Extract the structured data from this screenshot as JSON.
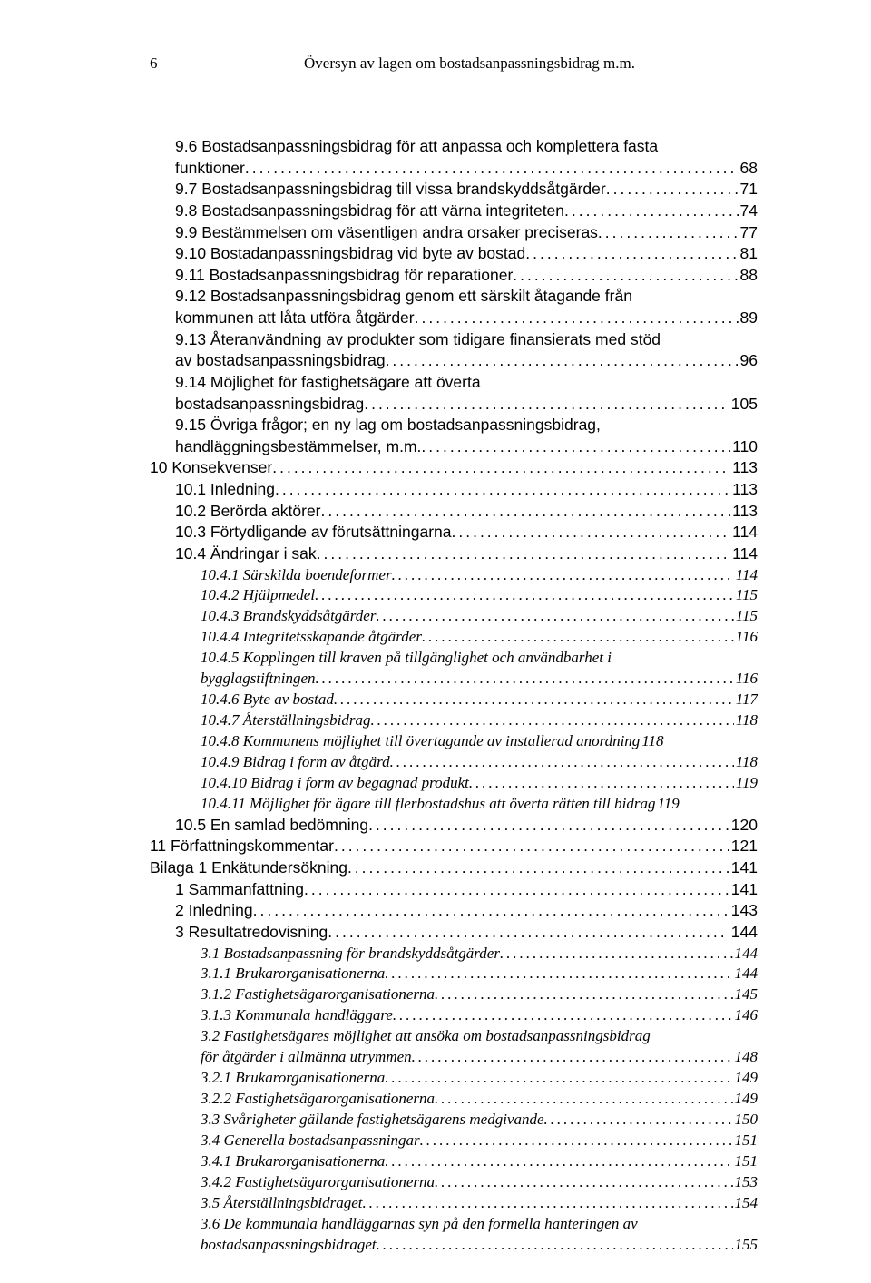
{
  "pageNumber": "6",
  "headerTitle": "Översyn av lagen om bostadsanpassningsbidrag m.m.",
  "lines": [
    {
      "style": "sans",
      "indent": 1,
      "text": "9.6 Bostadsanpassningsbidrag för att anpassa och komplettera fasta",
      "cont": true
    },
    {
      "style": "sans",
      "indent": 1,
      "text": "funktioner",
      "page": "68"
    },
    {
      "style": "sans",
      "indent": 1,
      "text": "9.7 Bostadsanpassningsbidrag till vissa brandskyddsåtgärder",
      "page": "71"
    },
    {
      "style": "sans",
      "indent": 1,
      "text": "9.8 Bostadsanpassningsbidrag för att värna integriteten",
      "page": "74"
    },
    {
      "style": "sans",
      "indent": 1,
      "text": "9.9 Bestämmelsen om väsentligen andra orsaker preciseras",
      "page": "77"
    },
    {
      "style": "sans",
      "indent": 1,
      "text": "9.10 Bostadanpassningsbidrag vid byte av bostad",
      "page": "81"
    },
    {
      "style": "sans",
      "indent": 1,
      "text": "9.11 Bostadsanpassningsbidrag för reparationer",
      "page": "88"
    },
    {
      "style": "sans",
      "indent": 1,
      "text": "9.12 Bostadsanpassningsbidrag genom ett särskilt åtagande från",
      "cont": true
    },
    {
      "style": "sans",
      "indent": 1,
      "text": "kommunen att låta utföra åtgärder",
      "page": "89"
    },
    {
      "style": "sans",
      "indent": 1,
      "text": "9.13 Återanvändning av produkter som tidigare finansierats med stöd",
      "cont": true
    },
    {
      "style": "sans",
      "indent": 1,
      "text": "av bostadsanpassningsbidrag",
      "page": "96"
    },
    {
      "style": "sans",
      "indent": 1,
      "text": "9.14 Möjlighet för fastighetsägare att överta",
      "cont": true
    },
    {
      "style": "sans",
      "indent": 1,
      "text": "bostadsanpassningsbidrag",
      "page": "105"
    },
    {
      "style": "sans",
      "indent": 1,
      "text": "9.15 Övriga frågor; en ny lag om bostadsanpassningsbidrag,",
      "cont": true
    },
    {
      "style": "sans",
      "indent": 1,
      "text": "handläggningsbestämmelser, m.m.",
      "page": "110"
    },
    {
      "style": "sans",
      "indent": 0,
      "text": "10 Konsekvenser",
      "page": "113"
    },
    {
      "style": "sans",
      "indent": 1,
      "text": "10.1 Inledning",
      "page": "113"
    },
    {
      "style": "sans",
      "indent": 1,
      "text": "10.2 Berörda aktörer",
      "page": "113"
    },
    {
      "style": "sans",
      "indent": 1,
      "text": "10.3 Förtydligande av förutsättningarna",
      "page": "114"
    },
    {
      "style": "sans",
      "indent": 1,
      "text": "10.4 Ändringar i sak",
      "page": "114"
    },
    {
      "style": "italic",
      "indent": 2,
      "text": "10.4.1 Särskilda boendeformer",
      "page": "114"
    },
    {
      "style": "italic",
      "indent": 2,
      "text": "10.4.2 Hjälpmedel",
      "page": "115"
    },
    {
      "style": "italic",
      "indent": 2,
      "text": "10.4.3 Brandskyddsåtgärder",
      "page": "115"
    },
    {
      "style": "italic",
      "indent": 2,
      "text": "10.4.4 Integritetsskapande åtgärder",
      "page": "116"
    },
    {
      "style": "italic",
      "indent": 2,
      "text": "10.4.5 Kopplingen till kraven på tillgänglighet och användbarhet i",
      "cont": true
    },
    {
      "style": "italic",
      "indent": 2,
      "text": "bygglagstiftningen",
      "page": "116"
    },
    {
      "style": "italic",
      "indent": 2,
      "text": "10.4.6 Byte av bostad",
      "page": "117"
    },
    {
      "style": "italic",
      "indent": 2,
      "text": "10.4.7 Återställningsbidrag",
      "page": "118"
    },
    {
      "style": "italic",
      "indent": 2,
      "text": "10.4.8 Kommunens möjlighet till övertagande av installerad anordning",
      "page": "118",
      "nodots": true
    },
    {
      "style": "italic",
      "indent": 2,
      "text": "10.4.9 Bidrag i form av åtgärd",
      "page": "118"
    },
    {
      "style": "italic",
      "indent": 2,
      "text": "10.4.10 Bidrag i form av begagnad produkt",
      "page": "119"
    },
    {
      "style": "italic",
      "indent": 2,
      "text": "10.4.11 Möjlighet för ägare till flerbostadshus att överta rätten till bidrag",
      "page": "119",
      "nodots": true
    },
    {
      "style": "sans",
      "indent": 1,
      "text": "10.5 En samlad bedömning",
      "page": "120"
    },
    {
      "style": "sans",
      "indent": 0,
      "text": "11 Författningskommentar",
      "page": "121"
    },
    {
      "style": "sans",
      "indent": 0,
      "text": "Bilaga 1 Enkätundersökning",
      "page": "141"
    },
    {
      "style": "sans",
      "indent": 1,
      "text": "1 Sammanfattning",
      "page": "141"
    },
    {
      "style": "sans",
      "indent": 1,
      "text": "2 Inledning",
      "page": "143"
    },
    {
      "style": "sans",
      "indent": 1,
      "text": "3 Resultatredovisning",
      "page": "144"
    },
    {
      "style": "italic",
      "indent": 2,
      "text": "3.1 Bostadsanpassning för brandskyddsåtgärder",
      "page": "144"
    },
    {
      "style": "italic",
      "indent": 2,
      "text": "3.1.1 Brukarorganisationerna",
      "page": "144"
    },
    {
      "style": "italic",
      "indent": 2,
      "text": "3.1.2 Fastighetsägarorganisationerna",
      "page": "145"
    },
    {
      "style": "italic",
      "indent": 2,
      "text": "3.1.3 Kommunala handläggare",
      "page": "146"
    },
    {
      "style": "italic",
      "indent": 2,
      "text": "3.2 Fastighetsägares möjlighet att ansöka om bostadsanpassningsbidrag",
      "cont": true
    },
    {
      "style": "italic",
      "indent": 2,
      "text": "för åtgärder i allmänna utrymmen",
      "page": "148"
    },
    {
      "style": "italic",
      "indent": 2,
      "text": "3.2.1 Brukarorganisationerna",
      "page": "149"
    },
    {
      "style": "italic",
      "indent": 2,
      "text": "3.2.2 Fastighetsägarorganisationerna",
      "page": "149"
    },
    {
      "style": "italic",
      "indent": 2,
      "text": "3.3 Svårigheter gällande fastighetsägarens medgivande",
      "page": "150"
    },
    {
      "style": "italic",
      "indent": 2,
      "text": "3.4 Generella bostadsanpassningar",
      "page": "151"
    },
    {
      "style": "italic",
      "indent": 2,
      "text": "3.4.1 Brukarorganisationerna",
      "page": "151"
    },
    {
      "style": "italic",
      "indent": 2,
      "text": "3.4.2 Fastighetsägarorganisationerna",
      "page": "153"
    },
    {
      "style": "italic",
      "indent": 2,
      "text": "3.5 Återställningsbidraget",
      "page": "154"
    },
    {
      "style": "italic",
      "indent": 2,
      "text": "3.6 De kommunala handläggarnas syn på den formella hanteringen av",
      "cont": true
    },
    {
      "style": "italic",
      "indent": 2,
      "text": "bostadsanpassningsbidraget",
      "page": "155"
    }
  ]
}
